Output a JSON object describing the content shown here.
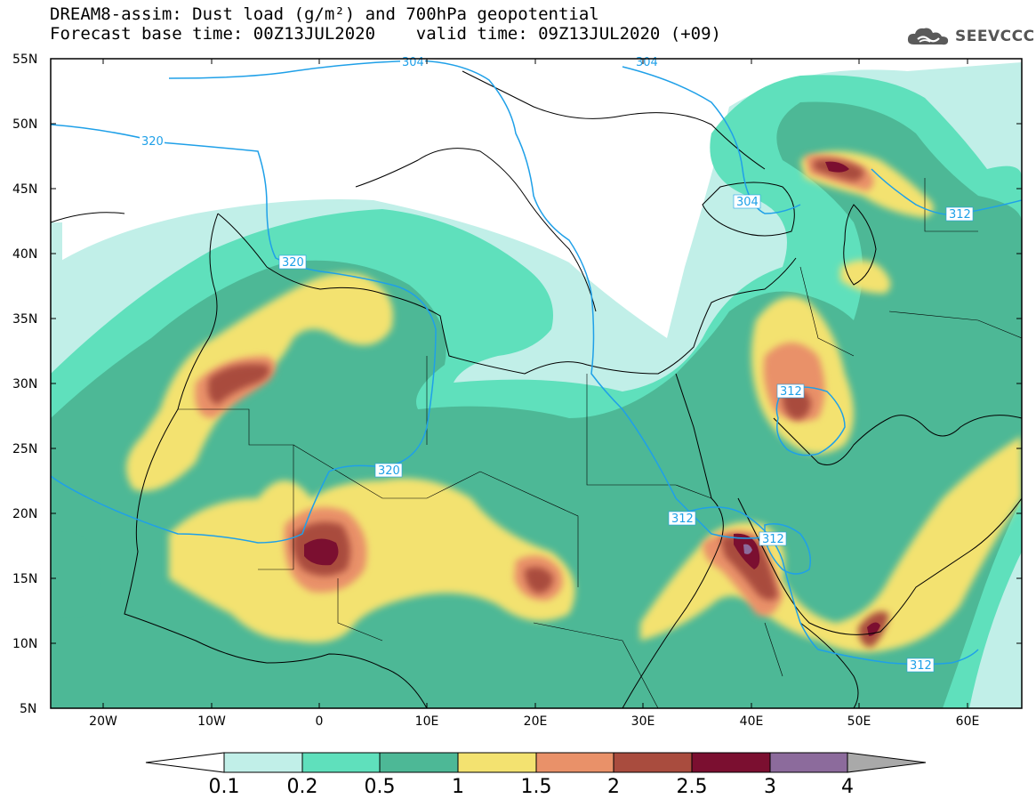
{
  "title": {
    "line1": "DREAM8-assim: Dust load (g/m²) and 700hPa geopotential",
    "line2": "Forecast base time: 00Z13JUL2020    valid time: 09Z13JUL2020 (+09)"
  },
  "logo": {
    "text": "SEEVCCC",
    "icon": "cloud-icon"
  },
  "map": {
    "lat_labels": [
      "55N",
      "50N",
      "45N",
      "40N",
      "35N",
      "30N",
      "25N",
      "20N",
      "15N",
      "10N",
      "5N"
    ],
    "lon_labels": [
      "20W",
      "10W",
      "0",
      "10E",
      "20E",
      "30E",
      "40E",
      "50E",
      "60E"
    ],
    "contour_color": "#1fa0e8",
    "contour_labels": [
      "304",
      "304",
      "320",
      "320",
      "320",
      "304",
      "312",
      "312",
      "312",
      "312",
      "312"
    ]
  },
  "colorbar": {
    "labels": [
      "0.1",
      "0.2",
      "0.5",
      "1",
      "1.5",
      "2",
      "2.5",
      "3",
      "4"
    ],
    "colors": [
      "#c1efe8",
      "#5fe0bc",
      "#4db896",
      "#f3e270",
      "#e99169",
      "#a94c3e",
      "#7b0f30",
      "#8c6b9c"
    ],
    "under_color": "#ffffff",
    "over_color": "#a9a9a9"
  }
}
